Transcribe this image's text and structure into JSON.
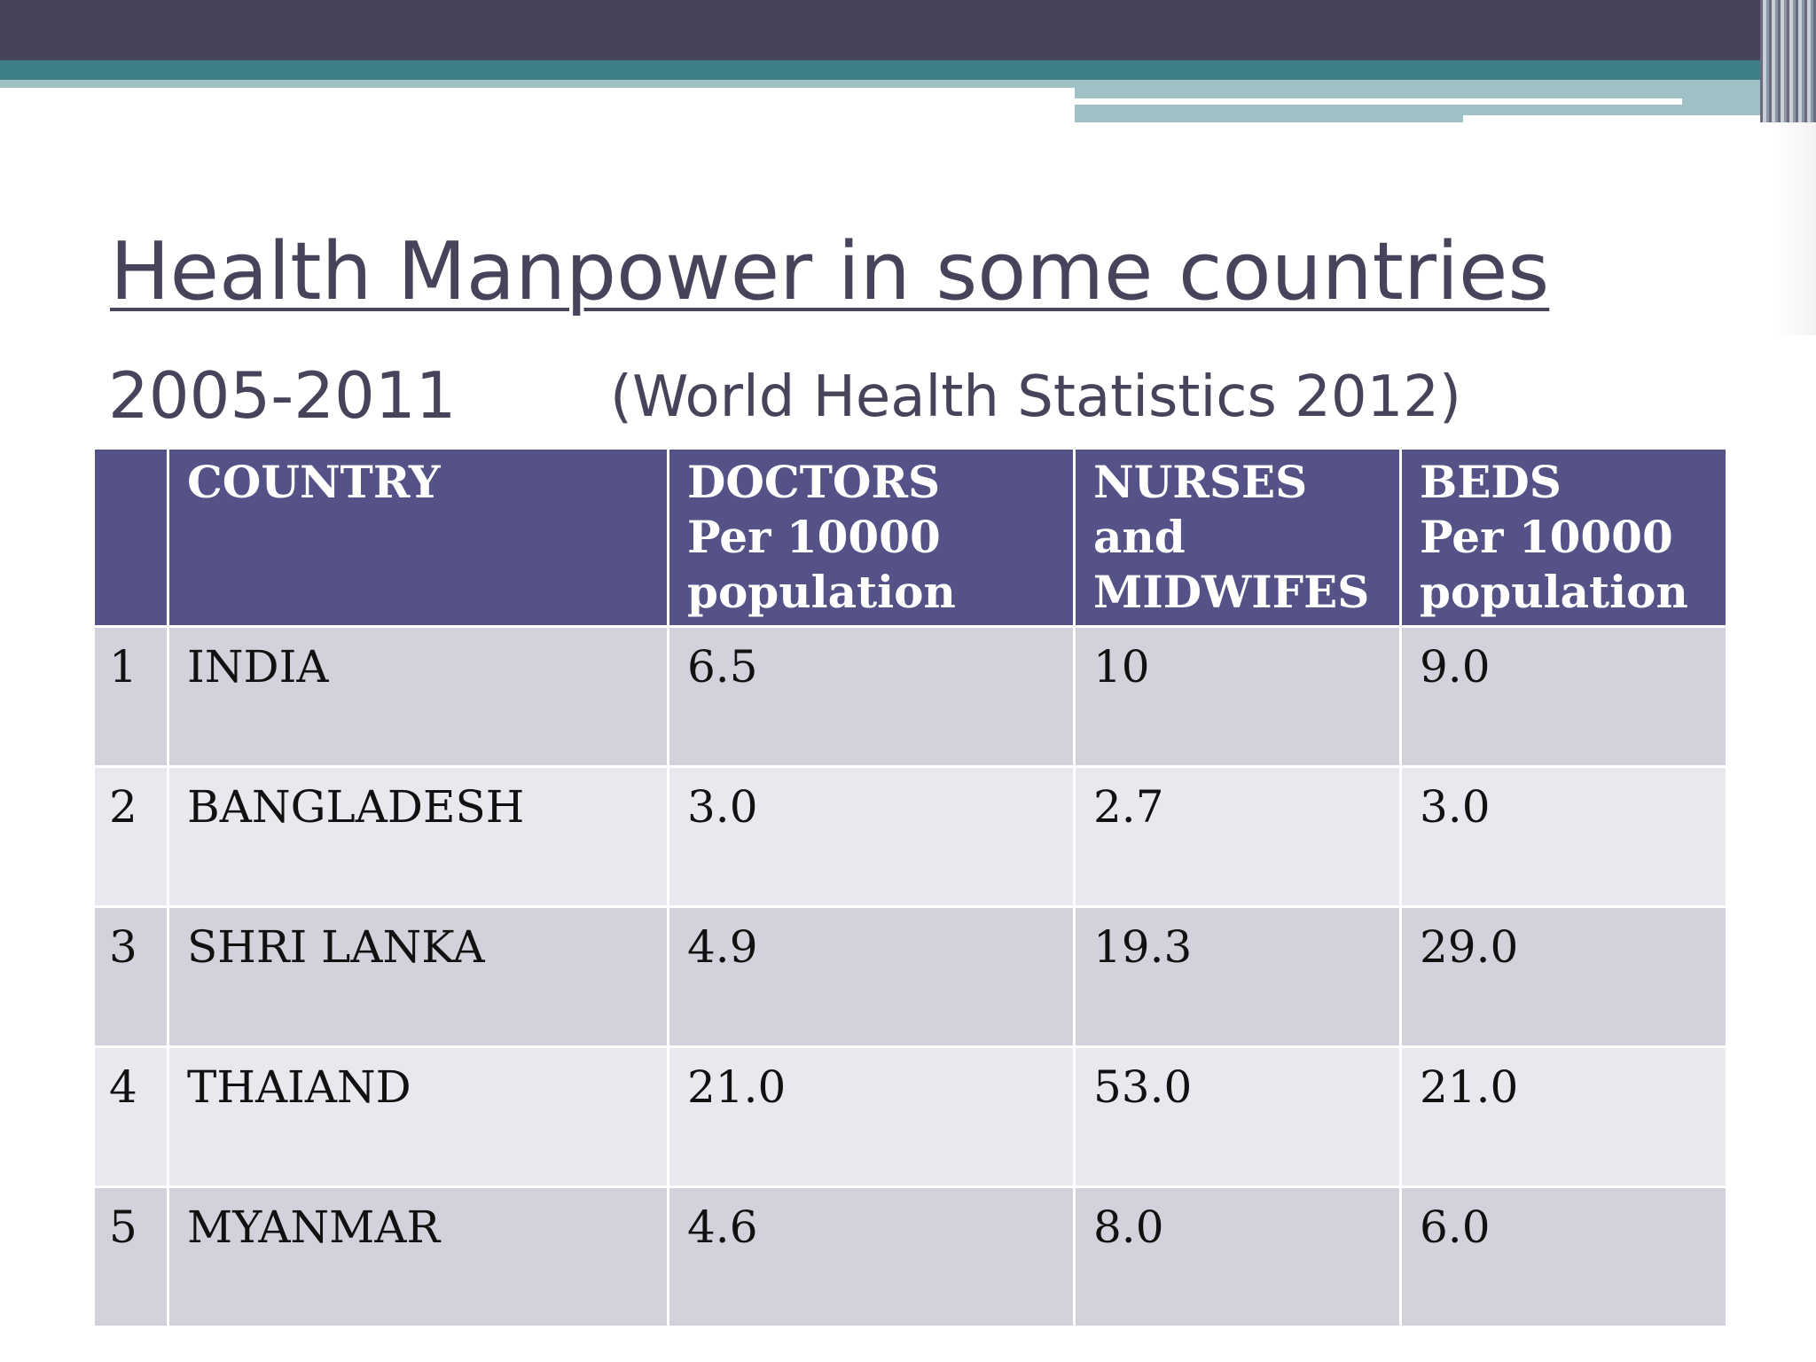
{
  "slide": {
    "title": "Health Manpower in some countries",
    "years": "2005-2011",
    "source": "(World Health Statistics 2012)"
  },
  "colors": {
    "header_band": "#45445a",
    "teal_band": "#3f8087",
    "table_header": "#545287",
    "row_odd": "#d3d2dc",
    "row_even": "#eae8ee",
    "title_text": "#45445a"
  },
  "table": {
    "headers": [
      "",
      "COUNTRY",
      "DOCTORS\nPer   10000\npopulation",
      "NURSES\nand\nMIDWIFES",
      "BEDS\nPer 10000\npopulation"
    ],
    "rows": [
      [
        "1",
        "INDIA",
        "6.5",
        "10",
        "9.0"
      ],
      [
        "2",
        "BANGLADESH",
        "3.0",
        "2.7",
        "3.0"
      ],
      [
        "3",
        "SHRI LANKA",
        "4.9",
        "19.3",
        "29.0"
      ],
      [
        "4",
        "THAIAND",
        "21.0",
        "53.0",
        "21.0"
      ],
      [
        "5",
        "MYANMAR",
        "4.6",
        "8.0",
        "6.0"
      ]
    ]
  }
}
